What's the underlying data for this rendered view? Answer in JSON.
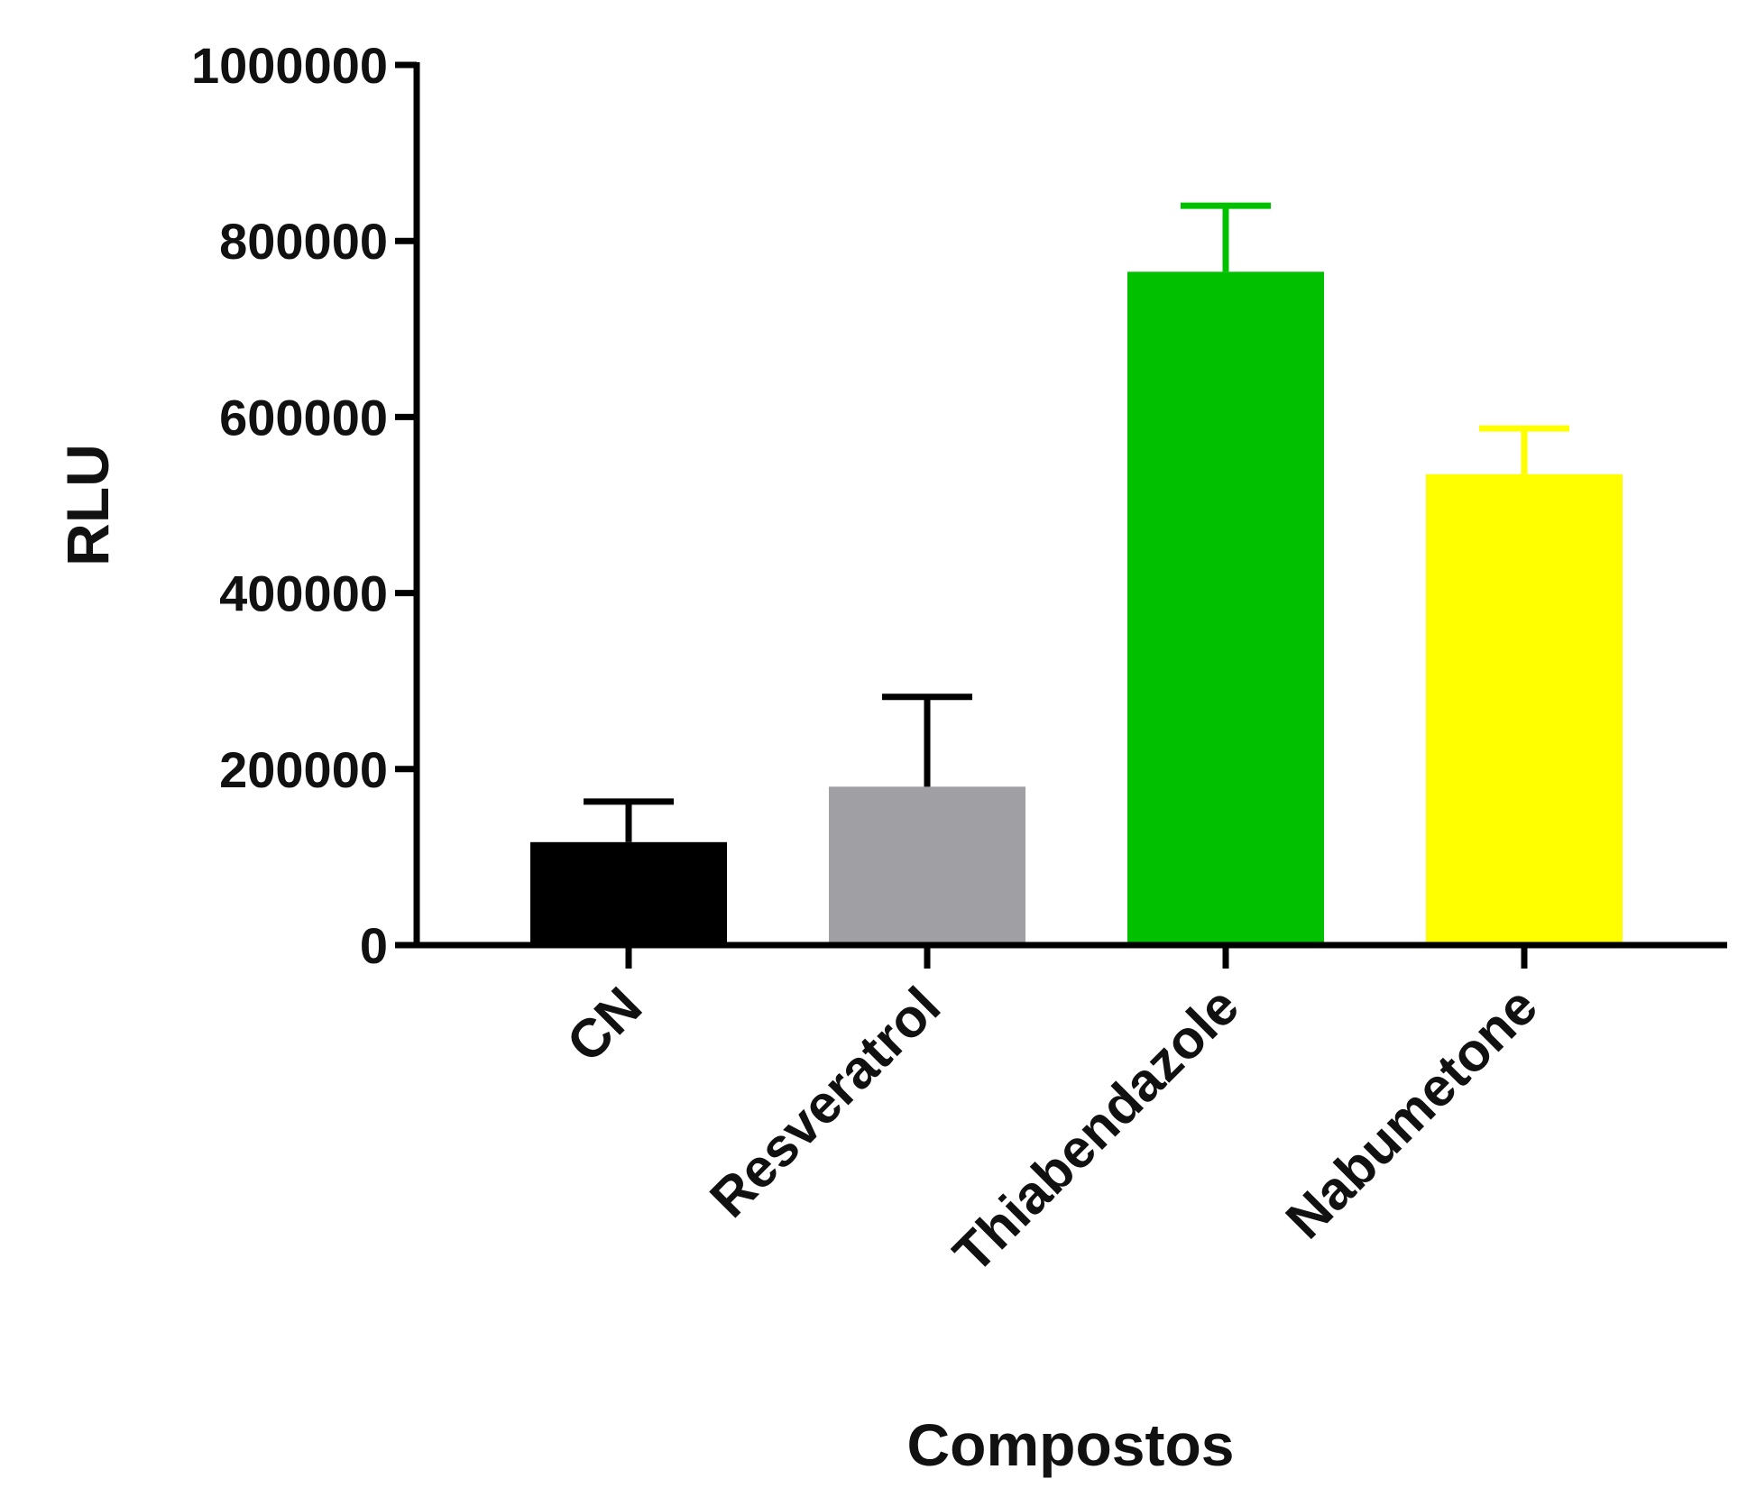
{
  "chart_data": {
    "type": "bar",
    "title": "",
    "xlabel": "Compostos",
    "ylabel": "RLU",
    "categories": [
      "CN",
      "Resveratrol",
      "Thiabendazole",
      "Nabumetone"
    ],
    "values": [
      117000,
      180000,
      765000,
      535000
    ],
    "error_upper": [
      163000,
      282000,
      840000,
      587000
    ],
    "colors": [
      "#000000",
      "#a0a0a4",
      "#00c000",
      "#ffff00"
    ],
    "ylim": [
      0,
      1000000
    ],
    "yticks": [
      0,
      200000,
      400000,
      600000,
      800000,
      1000000
    ],
    "ytick_labels": [
      "0",
      "200000",
      "400000",
      "600000",
      "800000",
      "1000000"
    ],
    "grid": false,
    "legend": "none"
  }
}
